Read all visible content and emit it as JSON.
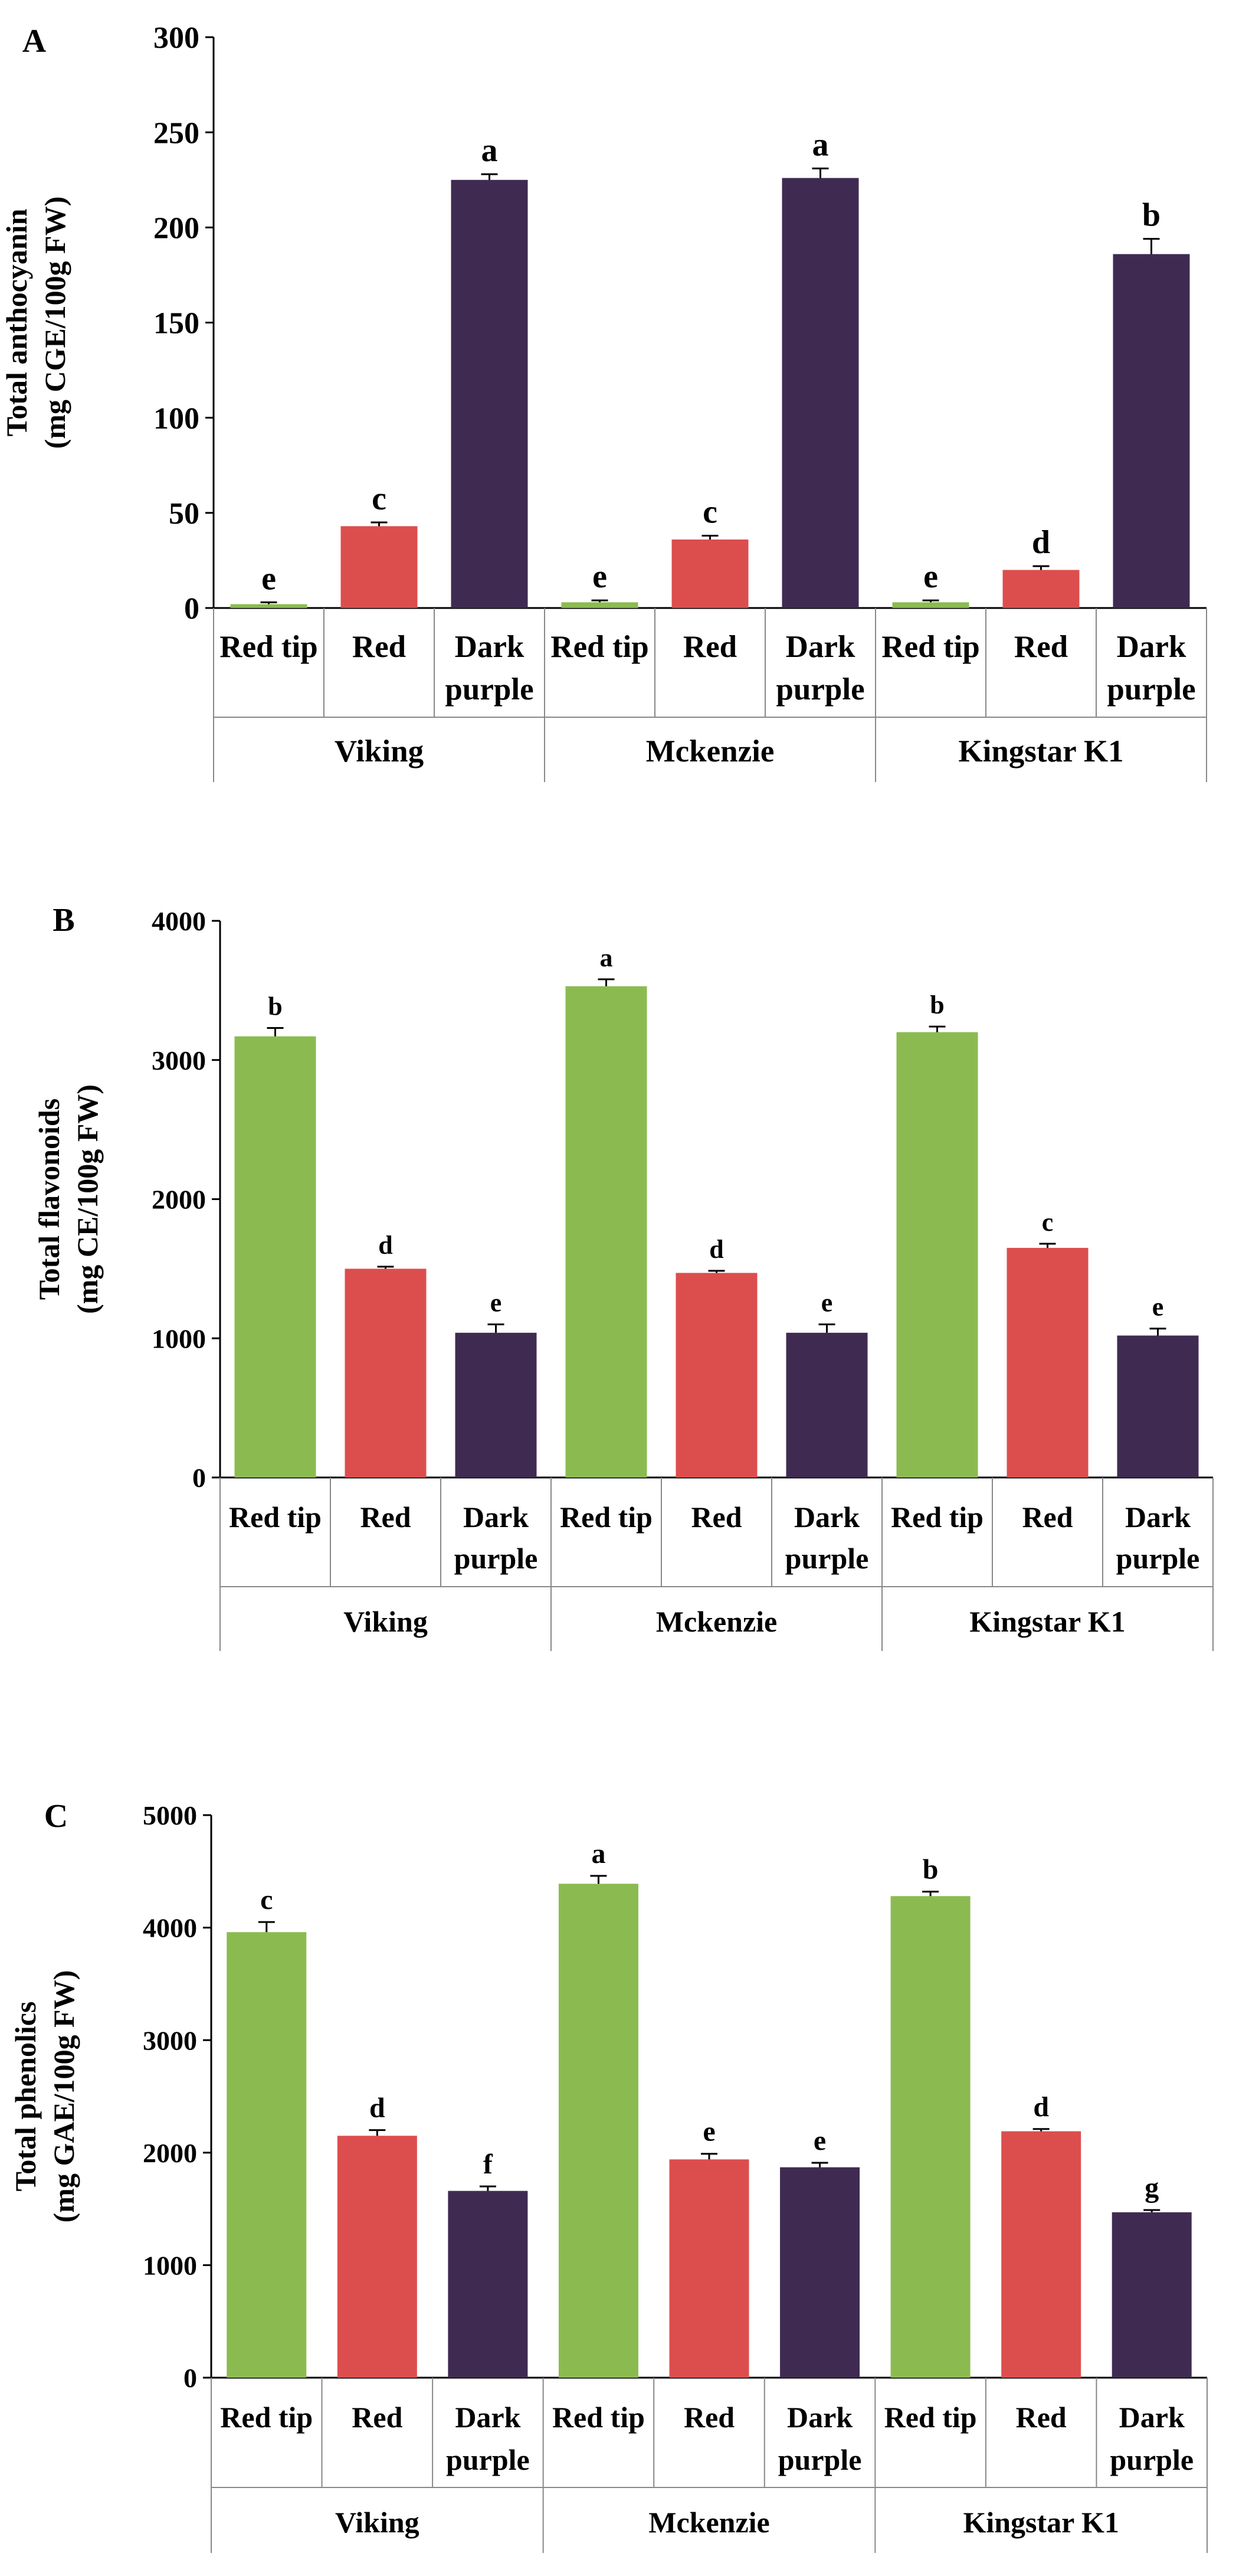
{
  "chart_data": [
    {
      "type": "bar",
      "panel_label": "A",
      "ylabel_lines": [
        "Total anthocyanin",
        "(mg CGE/100g FW)"
      ],
      "ylim": [
        0,
        300
      ],
      "yticks": [
        0,
        50,
        100,
        150,
        200,
        250,
        300
      ],
      "groups": [
        "Viking",
        "Mckenzie",
        "Kingstar K1"
      ],
      "categories": [
        "Red tip",
        "Red",
        "Dark purple"
      ],
      "values": [
        [
          2,
          43,
          225
        ],
        [
          3,
          36,
          226
        ],
        [
          3,
          20,
          186
        ]
      ],
      "errors": [
        [
          1,
          2,
          3
        ],
        [
          1,
          2,
          5
        ],
        [
          1,
          2,
          8
        ]
      ],
      "letters": [
        [
          "e",
          "c",
          "a"
        ],
        [
          "e",
          "c",
          "a"
        ],
        [
          "e",
          "d",
          "b"
        ]
      ],
      "grid": false
    },
    {
      "type": "bar",
      "panel_label": "B",
      "ylabel_lines": [
        "Total flavonoids",
        "(mg CE/100g FW)"
      ],
      "ylim": [
        0,
        4000
      ],
      "yticks": [
        0,
        1000,
        2000,
        3000,
        4000
      ],
      "groups": [
        "Viking",
        "Mckenzie",
        "Kingstar K1"
      ],
      "categories": [
        "Red tip",
        "Red",
        "Dark purple"
      ],
      "values": [
        [
          3170,
          1500,
          1040
        ],
        [
          3530,
          1470,
          1040
        ],
        [
          3200,
          1650,
          1020
        ]
      ],
      "errors": [
        [
          60,
          15,
          60
        ],
        [
          50,
          15,
          60
        ],
        [
          40,
          30,
          50
        ]
      ],
      "letters": [
        [
          "b",
          "d",
          "e"
        ],
        [
          "a",
          "d",
          "e"
        ],
        [
          "b",
          "c",
          "e"
        ]
      ],
      "grid": false
    },
    {
      "type": "bar",
      "panel_label": "C",
      "ylabel_lines": [
        "Total phenolics",
        "(mg GAE/100g FW)"
      ],
      "ylim": [
        0,
        5000
      ],
      "yticks": [
        0,
        1000,
        2000,
        3000,
        4000,
        5000
      ],
      "groups": [
        "Viking",
        "Mckenzie",
        "Kingstar K1"
      ],
      "categories": [
        "Red tip",
        "Red",
        "Dark purple"
      ],
      "values": [
        [
          3960,
          2150,
          1660
        ],
        [
          4390,
          1940,
          1870
        ],
        [
          4280,
          2190,
          1470
        ]
      ],
      "errors": [
        [
          90,
          50,
          40
        ],
        [
          70,
          50,
          40
        ],
        [
          40,
          20,
          20
        ]
      ],
      "letters": [
        [
          "c",
          "d",
          "f"
        ],
        [
          "a",
          "e",
          "e"
        ],
        [
          "b",
          "d",
          "g"
        ]
      ],
      "grid": false
    }
  ],
  "colors": {
    "red_tip": "#8BBB50",
    "red": "#DC4E4D",
    "dark_purple": "#3F2B52",
    "axis": "#000000",
    "frame": "#888888"
  }
}
